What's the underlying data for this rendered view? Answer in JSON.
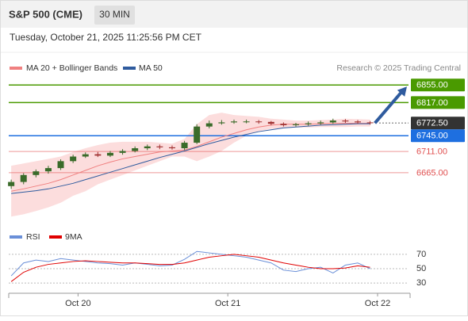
{
  "chart_data": {
    "type": "candlestick",
    "title": "S&P 500 (CME)",
    "interval": "30 MIN",
    "subtitle": "Tuesday, October 21, 2025 11:25:56 PM CET",
    "source": "Research © 2025 Trading Central",
    "legend": [
      "MA 20 + Bollinger Bands",
      "MA 50"
    ],
    "candles": {
      "open": [
        6636,
        6645,
        6660,
        6668,
        6675,
        6690,
        6700,
        6705,
        6702,
        6708,
        6712,
        6718,
        6722,
        6720,
        6718,
        6730,
        6765,
        6772,
        6774,
        6776,
        6776,
        6775,
        6771,
        6768,
        6770,
        6772,
        6774,
        6778,
        6776,
        6774
      ],
      "high": [
        6650,
        6664,
        6672,
        6680,
        6694,
        6704,
        6709,
        6710,
        6712,
        6716,
        6722,
        6726,
        6726,
        6724,
        6734,
        6770,
        6778,
        6779,
        6780,
        6780,
        6779,
        6777,
        6774,
        6773,
        6776,
        6778,
        6782,
        6781,
        6779,
        6777
      ],
      "low": [
        6630,
        6640,
        6655,
        6663,
        6671,
        6686,
        6697,
        6699,
        6699,
        6704,
        6709,
        6714,
        6716,
        6715,
        6714,
        6727,
        6761,
        6769,
        6771,
        6772,
        6771,
        6768,
        6765,
        6765,
        6767,
        6769,
        6771,
        6773,
        6771,
        6769
      ],
      "close": [
        6645,
        6660,
        6668,
        6675,
        6690,
        6700,
        6705,
        6702,
        6708,
        6712,
        6718,
        6722,
        6720,
        6718,
        6730,
        6765,
        6772,
        6774,
        6776,
        6776,
        6775,
        6771,
        6768,
        6770,
        6772,
        6774,
        6778,
        6776,
        6774,
        6772.5
      ],
      "up_color": "#3a6b2a",
      "down_color": "#a03030"
    },
    "series": [
      {
        "name": "MA 20",
        "color": "#f08080",
        "values": [
          6625,
          6630,
          6636,
          6642,
          6650,
          6660,
          6670,
          6680,
          6688,
          6695,
          6700,
          6705,
          6710,
          6712,
          6714,
          6722,
          6732,
          6742,
          6750,
          6758,
          6764,
          6768,
          6770,
          6770,
          6770,
          6771,
          6772,
          6772,
          6772,
          6772
        ]
      },
      {
        "name": "MA 50",
        "color": "#2f5b9e",
        "values": [
          6620,
          6623,
          6626,
          6630,
          6636,
          6642,
          6650,
          6658,
          6666,
          6674,
          6682,
          6690,
          6698,
          6705,
          6712,
          6720,
          6728,
          6735,
          6742,
          6748,
          6754,
          6758,
          6762,
          6764,
          6766,
          6768,
          6769,
          6770,
          6771,
          6771
        ]
      }
    ],
    "bands": {
      "color": "#fbd5d5",
      "upper": [
        6680,
        6685,
        6690,
        6695,
        6700,
        6710,
        6718,
        6725,
        6730,
        6732,
        6732,
        6732,
        6730,
        6728,
        6738,
        6770,
        6790,
        6795,
        6790,
        6788,
        6786,
        6782,
        6780,
        6778,
        6778,
        6779,
        6780,
        6782,
        6781,
        6780
      ],
      "lower": [
        6570,
        6575,
        6582,
        6590,
        6600,
        6615,
        6625,
        6640,
        6650,
        6660,
        6670,
        6680,
        6690,
        6700,
        6700,
        6690,
        6700,
        6712,
        6730,
        6745,
        6755,
        6760,
        6762,
        6763,
        6763,
        6764,
        6764,
        6764,
        6765,
        6765
      ]
    },
    "levels": [
      {
        "value": 6855,
        "label": "6855.00",
        "color": "#4a9a00",
        "style": "box"
      },
      {
        "value": 6817,
        "label": "6817.00",
        "color": "#4a9a00",
        "style": "box"
      },
      {
        "value": 6772.5,
        "label": "6772.50",
        "color": "#333333",
        "style": "current"
      },
      {
        "value": 6745,
        "label": "6745.00",
        "color": "#1e6fe0",
        "style": "box"
      },
      {
        "value": 6711,
        "label": "6711.00",
        "color": "#e05050",
        "style": "text"
      },
      {
        "value": 6665,
        "label": "6665.00",
        "color": "#e05050",
        "style": "text"
      }
    ],
    "ylim": [
      6555,
      6888
    ],
    "xlim": [
      -0.2,
      32.1
    ],
    "xticks": [
      {
        "value": 5.4,
        "label": "Oct 20"
      },
      {
        "value": 17.5,
        "label": "Oct 21"
      },
      {
        "value": 29.6,
        "label": "Oct 22"
      }
    ],
    "rsi": {
      "legend": [
        "RSI",
        "9MA"
      ],
      "series": [
        {
          "name": "RSI",
          "color": "#6a8fd8",
          "values": [
            40,
            58,
            62,
            60,
            64,
            62,
            60,
            58,
            57,
            55,
            58,
            56,
            54,
            55,
            63,
            74,
            72,
            70,
            68,
            66,
            62,
            58,
            48,
            46,
            50,
            52,
            44,
            55,
            58,
            50
          ]
        },
        {
          "name": "9MA",
          "color": "#e00000",
          "values": [
            32,
            45,
            52,
            56,
            58,
            60,
            61,
            60,
            59,
            58,
            58,
            57,
            56,
            56,
            58,
            62,
            66,
            68,
            70,
            68,
            66,
            62,
            58,
            55,
            52,
            50,
            50,
            51,
            54,
            52
          ]
        }
      ],
      "ylim": [
        18,
        82
      ],
      "yticks": [
        70,
        50,
        30
      ]
    }
  }
}
